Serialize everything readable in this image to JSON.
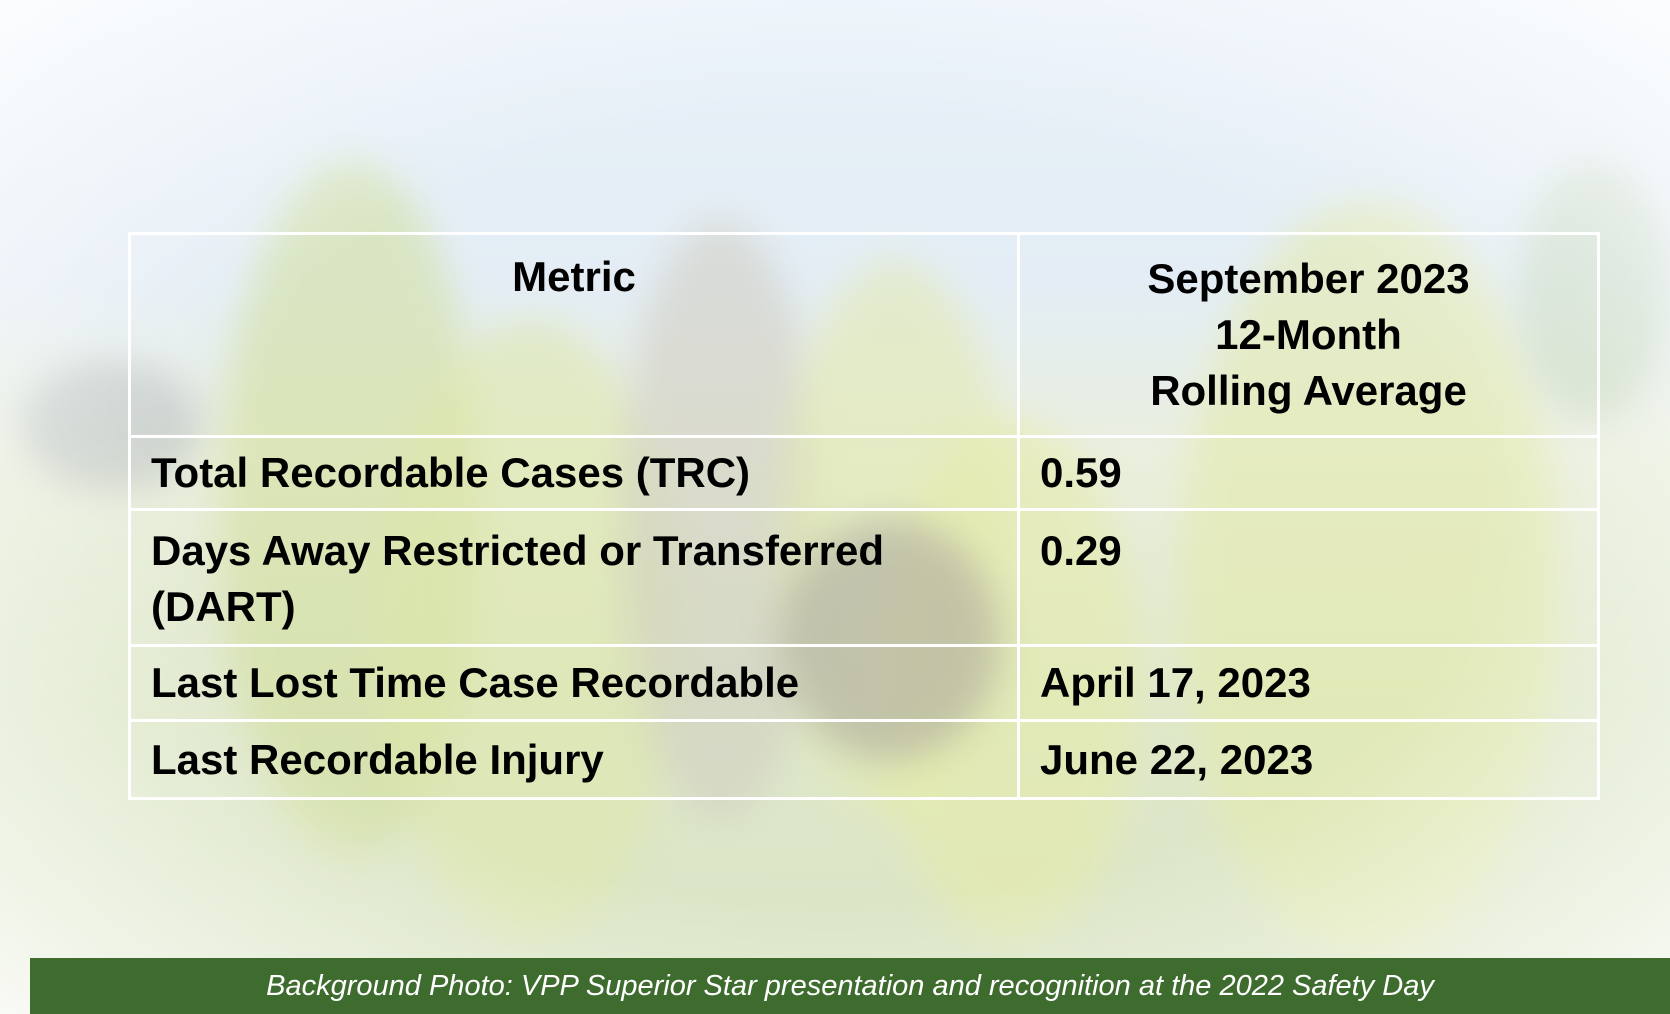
{
  "table": {
    "header": {
      "metric": "Metric",
      "period": [
        "September 2023",
        "12-Month",
        "Rolling Average"
      ]
    },
    "rows": [
      [
        "Total Recordable Cases (TRC)",
        0.59
      ],
      [
        "Days Away Restricted or Transferred (DART)",
        0.29
      ],
      [
        "Last Lost Time Case Recordable",
        "April 17, 2023"
      ],
      [
        "Last Recordable Injury",
        "June 22, 2023"
      ]
    ]
  },
  "caption": "Background Photo: VPP Superior Star presentation and recognition at the 2022 Safety Day"
}
